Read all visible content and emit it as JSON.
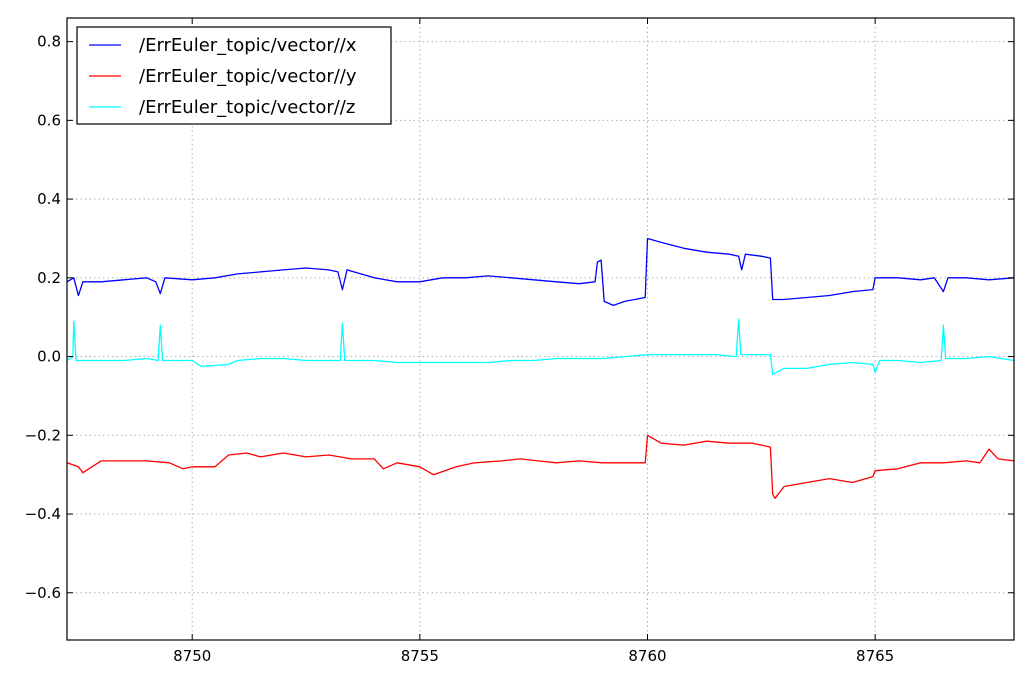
{
  "chart_data": {
    "type": "line",
    "title": "",
    "xlabel": "",
    "ylabel": "",
    "xlim": [
      8747.25,
      8768.05
    ],
    "ylim": [
      -0.72,
      0.86
    ],
    "x_ticks": [
      8750,
      8755,
      8760,
      8765
    ],
    "x_tick_labels": [
      "8750",
      "8755",
      "8760",
      "8765"
    ],
    "y_ticks": [
      -0.6,
      -0.4,
      -0.2,
      0.0,
      0.2,
      0.4,
      0.6,
      0.8
    ],
    "y_tick_labels": [
      "−0.6",
      "−0.4",
      "−0.2",
      "0.0",
      "0.2",
      "0.4",
      "0.6",
      "0.8"
    ],
    "grid": true,
    "legend_position": "top-left",
    "series": [
      {
        "name": "/ErrEuler_topic/vector//x",
        "color": "#0000ff",
        "points": [
          [
            8747.25,
            0.19
          ],
          [
            8747.4,
            0.2
          ],
          [
            8747.5,
            0.155
          ],
          [
            8747.6,
            0.19
          ],
          [
            8748.0,
            0.19
          ],
          [
            8748.5,
            0.195
          ],
          [
            8749.0,
            0.2
          ],
          [
            8749.2,
            0.19
          ],
          [
            8749.3,
            0.16
          ],
          [
            8749.4,
            0.2
          ],
          [
            8750.0,
            0.195
          ],
          [
            8750.5,
            0.2
          ],
          [
            8751.0,
            0.21
          ],
          [
            8751.5,
            0.215
          ],
          [
            8752.0,
            0.22
          ],
          [
            8752.5,
            0.225
          ],
          [
            8753.0,
            0.22
          ],
          [
            8753.2,
            0.215
          ],
          [
            8753.3,
            0.17
          ],
          [
            8753.4,
            0.22
          ],
          [
            8754.0,
            0.2
          ],
          [
            8754.5,
            0.19
          ],
          [
            8755.0,
            0.19
          ],
          [
            8755.5,
            0.2
          ],
          [
            8756.0,
            0.2
          ],
          [
            8756.5,
            0.205
          ],
          [
            8757.0,
            0.2
          ],
          [
            8757.5,
            0.195
          ],
          [
            8758.0,
            0.19
          ],
          [
            8758.5,
            0.185
          ],
          [
            8758.85,
            0.19
          ],
          [
            8758.9,
            0.24
          ],
          [
            8758.98,
            0.245
          ],
          [
            8759.05,
            0.14
          ],
          [
            8759.25,
            0.13
          ],
          [
            8759.5,
            0.14
          ],
          [
            8759.95,
            0.15
          ],
          [
            8760.0,
            0.3
          ],
          [
            8760.3,
            0.29
          ],
          [
            8760.8,
            0.275
          ],
          [
            8761.3,
            0.265
          ],
          [
            8761.8,
            0.26
          ],
          [
            8762.0,
            0.255
          ],
          [
            8762.07,
            0.22
          ],
          [
            8762.15,
            0.26
          ],
          [
            8762.5,
            0.255
          ],
          [
            8762.7,
            0.25
          ],
          [
            8762.75,
            0.145
          ],
          [
            8763.0,
            0.145
          ],
          [
            8763.5,
            0.15
          ],
          [
            8764.0,
            0.155
          ],
          [
            8764.5,
            0.165
          ],
          [
            8764.95,
            0.17
          ],
          [
            8765.0,
            0.2
          ],
          [
            8765.5,
            0.2
          ],
          [
            8766.0,
            0.195
          ],
          [
            8766.3,
            0.2
          ],
          [
            8766.5,
            0.165
          ],
          [
            8766.6,
            0.2
          ],
          [
            8767.0,
            0.2
          ],
          [
            8767.5,
            0.195
          ],
          [
            8768.05,
            0.2
          ]
        ]
      },
      {
        "name": "/ErrEuler_topic/vector//y",
        "color": "#ff0000",
        "points": [
          [
            8747.25,
            -0.27
          ],
          [
            8747.5,
            -0.28
          ],
          [
            8747.6,
            -0.295
          ],
          [
            8748.0,
            -0.265
          ],
          [
            8748.5,
            -0.265
          ],
          [
            8749.0,
            -0.265
          ],
          [
            8749.5,
            -0.27
          ],
          [
            8749.8,
            -0.285
          ],
          [
            8750.0,
            -0.28
          ],
          [
            8750.5,
            -0.28
          ],
          [
            8750.8,
            -0.25
          ],
          [
            8751.2,
            -0.245
          ],
          [
            8751.5,
            -0.255
          ],
          [
            8752.0,
            -0.245
          ],
          [
            8752.5,
            -0.255
          ],
          [
            8753.0,
            -0.25
          ],
          [
            8753.5,
            -0.26
          ],
          [
            8754.0,
            -0.26
          ],
          [
            8754.2,
            -0.285
          ],
          [
            8754.5,
            -0.27
          ],
          [
            8755.0,
            -0.28
          ],
          [
            8755.3,
            -0.3
          ],
          [
            8755.8,
            -0.28
          ],
          [
            8756.2,
            -0.27
          ],
          [
            8756.8,
            -0.265
          ],
          [
            8757.2,
            -0.26
          ],
          [
            8757.6,
            -0.265
          ],
          [
            8758.0,
            -0.27
          ],
          [
            8758.5,
            -0.265
          ],
          [
            8759.0,
            -0.27
          ],
          [
            8759.5,
            -0.27
          ],
          [
            8759.95,
            -0.27
          ],
          [
            8760.0,
            -0.2
          ],
          [
            8760.3,
            -0.22
          ],
          [
            8760.8,
            -0.225
          ],
          [
            8761.3,
            -0.215
          ],
          [
            8761.8,
            -0.22
          ],
          [
            8762.3,
            -0.22
          ],
          [
            8762.5,
            -0.225
          ],
          [
            8762.7,
            -0.23
          ],
          [
            8762.75,
            -0.35
          ],
          [
            8762.8,
            -0.36
          ],
          [
            8763.0,
            -0.33
          ],
          [
            8763.5,
            -0.32
          ],
          [
            8764.0,
            -0.31
          ],
          [
            8764.5,
            -0.32
          ],
          [
            8764.95,
            -0.305
          ],
          [
            8765.0,
            -0.29
          ],
          [
            8765.5,
            -0.285
          ],
          [
            8766.0,
            -0.27
          ],
          [
            8766.5,
            -0.27
          ],
          [
            8767.0,
            -0.265
          ],
          [
            8767.3,
            -0.27
          ],
          [
            8767.5,
            -0.235
          ],
          [
            8767.7,
            -0.26
          ],
          [
            8768.05,
            -0.265
          ]
        ]
      },
      {
        "name": "/ErrEuler_topic/vector//z",
        "color": "#00ffff",
        "points": [
          [
            8747.25,
            -0.01
          ],
          [
            8747.38,
            0.0
          ],
          [
            8747.4,
            0.09
          ],
          [
            8747.45,
            -0.01
          ],
          [
            8748.0,
            -0.01
          ],
          [
            8748.5,
            -0.01
          ],
          [
            8749.0,
            -0.005
          ],
          [
            8749.25,
            -0.01
          ],
          [
            8749.3,
            0.08
          ],
          [
            8749.35,
            -0.01
          ],
          [
            8750.0,
            -0.01
          ],
          [
            8750.2,
            -0.025
          ],
          [
            8750.8,
            -0.02
          ],
          [
            8751.0,
            -0.01
          ],
          [
            8751.5,
            -0.005
          ],
          [
            8752.0,
            -0.005
          ],
          [
            8752.5,
            -0.01
          ],
          [
            8753.0,
            -0.01
          ],
          [
            8753.25,
            -0.01
          ],
          [
            8753.3,
            0.085
          ],
          [
            8753.35,
            -0.01
          ],
          [
            8754.0,
            -0.01
          ],
          [
            8754.5,
            -0.015
          ],
          [
            8755.0,
            -0.015
          ],
          [
            8755.5,
            -0.015
          ],
          [
            8756.0,
            -0.015
          ],
          [
            8756.5,
            -0.015
          ],
          [
            8757.0,
            -0.01
          ],
          [
            8757.5,
            -0.01
          ],
          [
            8758.0,
            -0.005
          ],
          [
            8758.5,
            -0.005
          ],
          [
            8759.0,
            -0.005
          ],
          [
            8759.5,
            0.0
          ],
          [
            8760.0,
            0.005
          ],
          [
            8760.5,
            0.005
          ],
          [
            8761.0,
            0.005
          ],
          [
            8761.5,
            0.005
          ],
          [
            8761.95,
            0.0
          ],
          [
            8762.0,
            0.095
          ],
          [
            8762.05,
            0.005
          ],
          [
            8762.5,
            0.005
          ],
          [
            8762.7,
            0.005
          ],
          [
            8762.75,
            -0.045
          ],
          [
            8763.0,
            -0.03
          ],
          [
            8763.5,
            -0.03
          ],
          [
            8764.0,
            -0.02
          ],
          [
            8764.5,
            -0.015
          ],
          [
            8764.95,
            -0.02
          ],
          [
            8765.0,
            -0.04
          ],
          [
            8765.1,
            -0.01
          ],
          [
            8765.5,
            -0.01
          ],
          [
            8766.0,
            -0.015
          ],
          [
            8766.45,
            -0.01
          ],
          [
            8766.5,
            0.08
          ],
          [
            8766.55,
            -0.005
          ],
          [
            8767.0,
            -0.005
          ],
          [
            8767.5,
            0.0
          ],
          [
            8768.05,
            -0.01
          ]
        ]
      }
    ]
  }
}
